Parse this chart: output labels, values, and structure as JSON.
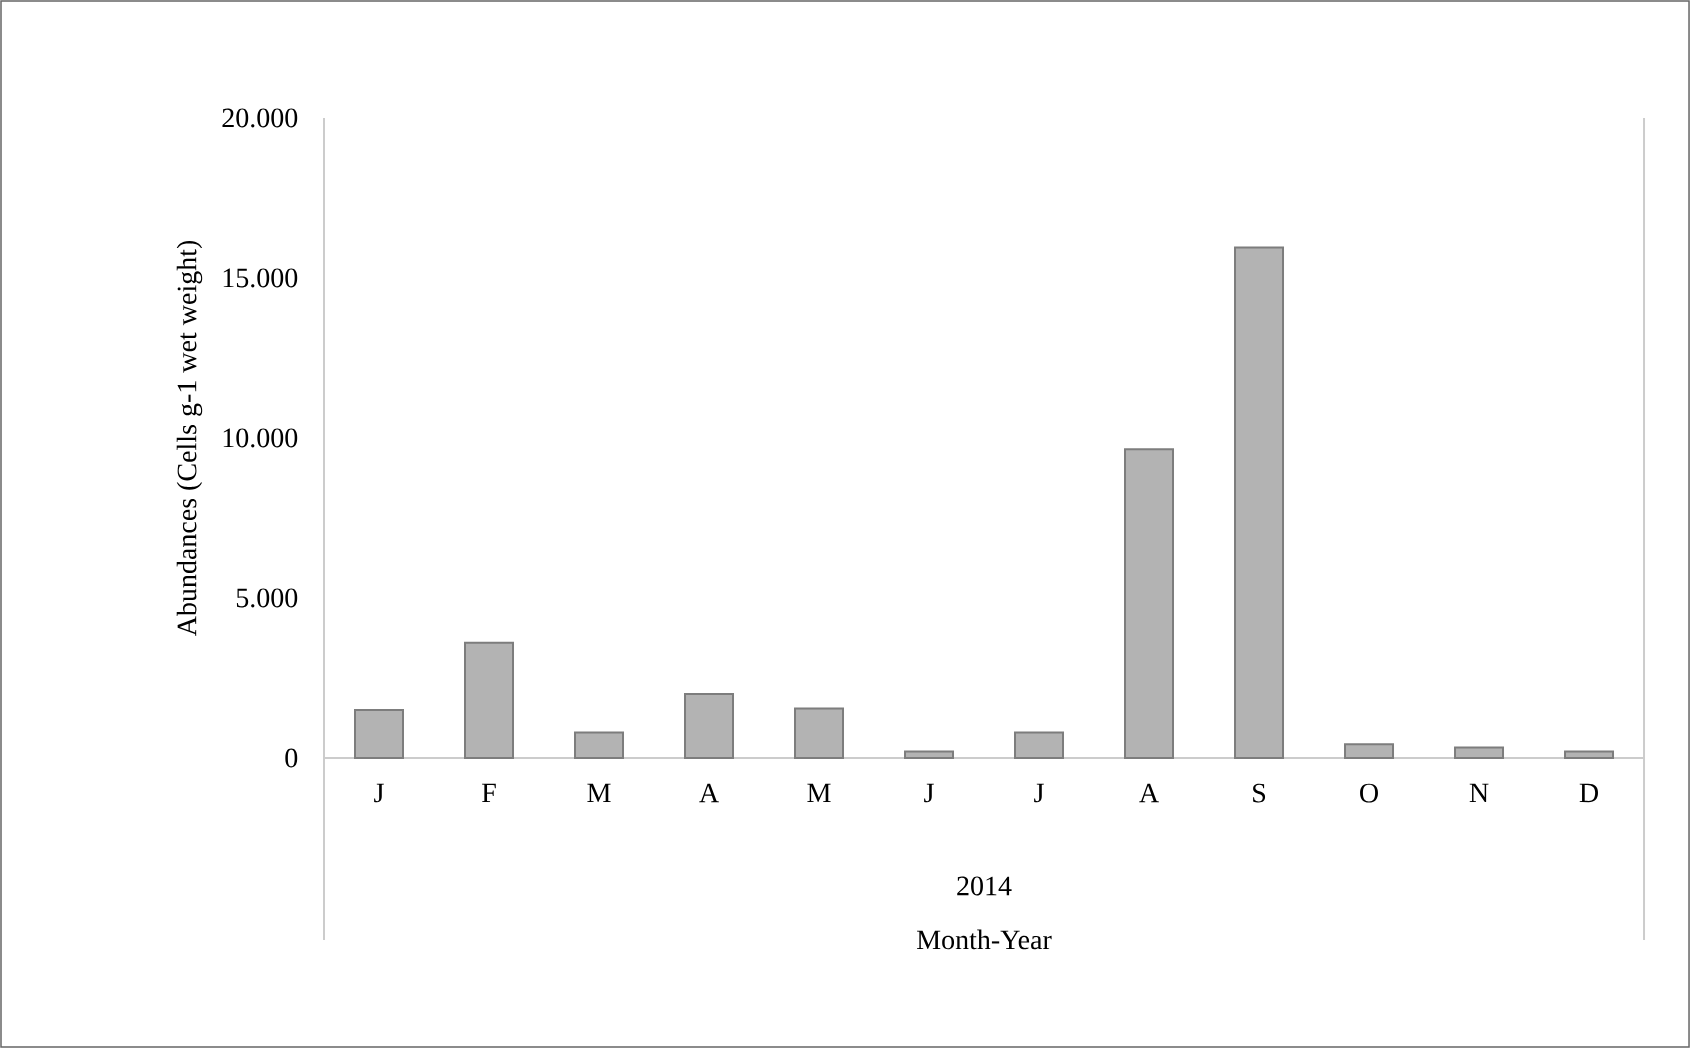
{
  "chart_data": {
    "type": "bar",
    "xlabel": "Month-Year",
    "ylabel": "Abundances (Cells g-1  wet weight)",
    "categories": [
      "J",
      "F",
      "M",
      "A",
      "M",
      "J",
      "J",
      "A",
      "S",
      "O",
      "N",
      "D"
    ],
    "values": [
      1500,
      3600,
      800,
      2000,
      1550,
      200,
      800,
      9650,
      15950,
      430,
      330,
      200
    ],
    "color": "#b3b3b3",
    "ylim": [
      0,
      20000
    ],
    "yticks": [
      0,
      {
        "value": 5000,
        "label": "5.000"
      },
      {
        "value": 10000,
        "label": "10.000"
      },
      {
        "value": 15000,
        "label": "15.000"
      },
      {
        "value": 20000,
        "label": "20.000"
      }
    ],
    "annotations": [
      "2014"
    ]
  }
}
